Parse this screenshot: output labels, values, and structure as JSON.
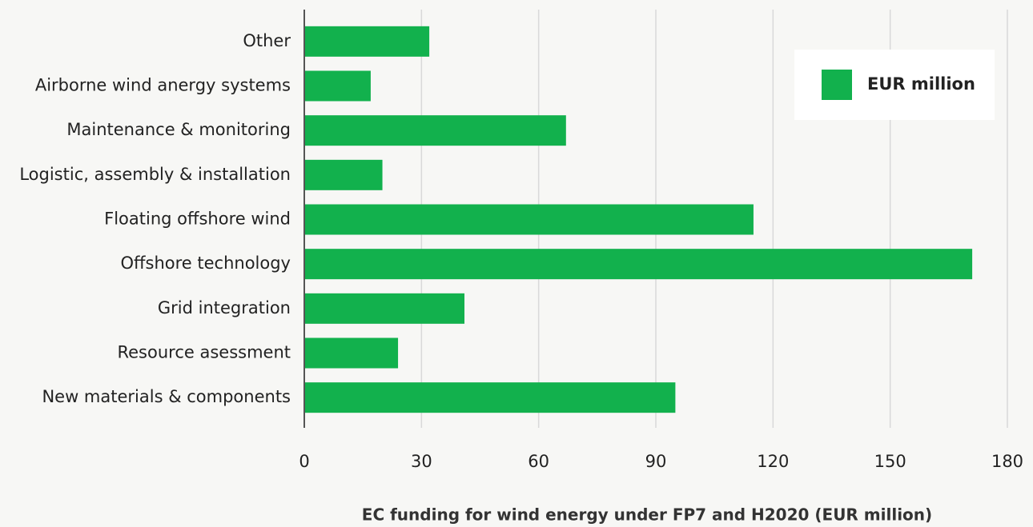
{
  "chart_data": {
    "type": "bar",
    "orientation": "horizontal",
    "xlabel": "EC funding for wind energy under FP7 and H2020 (EUR million)",
    "categories": [
      "Other",
      "Airborne wind anergy systems",
      "Maintenance & monitoring",
      "Logistic, assembly & installation",
      "Floating offshore wind",
      "Offshore technology",
      "Grid integration",
      "Resource asessment",
      "New materials & components"
    ],
    "series": [
      {
        "name": "EUR million",
        "color": "#12b14d",
        "values": [
          32,
          17,
          67,
          20,
          115,
          171,
          41,
          24,
          95
        ]
      }
    ],
    "xlim": [
      0,
      180
    ],
    "xticks": [
      0,
      30,
      60,
      90,
      120,
      150,
      180
    ],
    "grid": true,
    "legend": "upper right"
  }
}
